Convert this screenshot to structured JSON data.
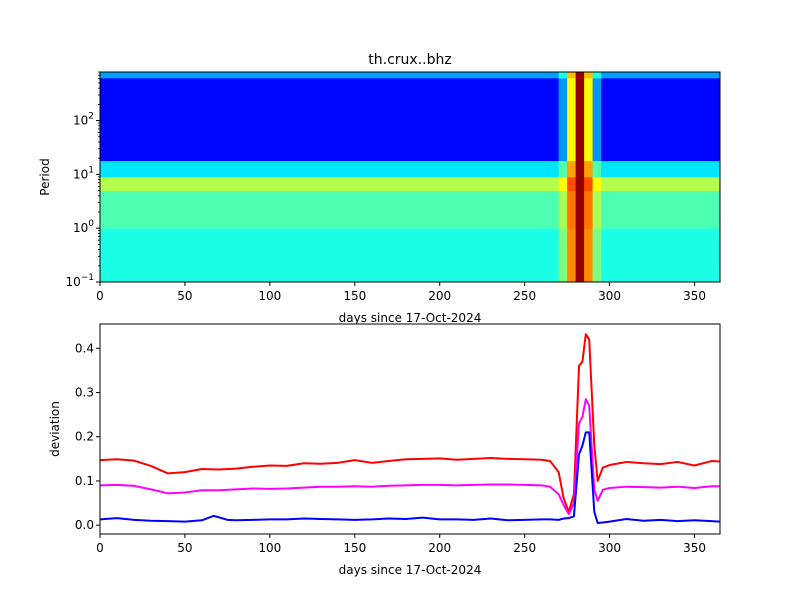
{
  "chart_data": [
    {
      "type": "heatmap",
      "title": "th.crux..bhz",
      "xlabel": "days since 17-Oct-2024",
      "ylabel": "Period",
      "xlim": [
        0,
        365
      ],
      "ylim": [
        0.1,
        800
      ],
      "yscale": "log",
      "colormap": "jet",
      "x_ticks": [
        "0",
        "50",
        "100",
        "150",
        "200",
        "250",
        "300",
        "350"
      ],
      "y_ticks": [
        {
          "base": "10",
          "exp": "−1"
        },
        {
          "base": "10",
          "exp": "0"
        },
        {
          "base": "10",
          "exp": "1"
        },
        {
          "base": "10",
          "exp": "2"
        }
      ],
      "period_bands": [
        {
          "period_range": [
            0.1,
            1.0
          ],
          "level": 0.4
        },
        {
          "period_range": [
            1.0,
            5.0
          ],
          "level": 0.45
        },
        {
          "period_range": [
            5.0,
            9.0
          ],
          "level": 0.55
        },
        {
          "period_range": [
            9.0,
            18.0
          ],
          "level": 0.35
        },
        {
          "period_range": [
            18.0,
            620.0
          ],
          "level": 0.13
        },
        {
          "period_range": [
            620.0,
            800.0
          ],
          "level": 0.28
        }
      ],
      "anomaly": {
        "day_range": [
          269,
          293
        ],
        "core_day_range": [
          278,
          287
        ],
        "level": 0.98
      }
    },
    {
      "type": "line",
      "title": "",
      "xlabel": "days since 17-Oct-2024",
      "ylabel": "deviation",
      "xlim": [
        0,
        365
      ],
      "ylim": [
        -0.02,
        0.455
      ],
      "x_ticks": [
        "0",
        "50",
        "100",
        "150",
        "200",
        "250",
        "300",
        "350"
      ],
      "y_ticks": [
        "0.0",
        "0.1",
        "0.2",
        "0.3",
        "0.4"
      ],
      "series": [
        {
          "color": "#ff0000",
          "x": [
            0,
            10,
            20,
            30,
            40,
            50,
            60,
            70,
            80,
            90,
            100,
            110,
            120,
            130,
            140,
            150,
            160,
            170,
            180,
            190,
            200,
            210,
            220,
            230,
            240,
            250,
            260,
            265,
            270,
            273,
            276,
            279,
            282,
            284,
            286,
            288,
            291,
            293,
            296,
            300,
            310,
            320,
            330,
            340,
            350,
            360,
            365
          ],
          "values": [
            0.147,
            0.149,
            0.146,
            0.134,
            0.117,
            0.12,
            0.127,
            0.126,
            0.128,
            0.132,
            0.135,
            0.134,
            0.14,
            0.139,
            0.141,
            0.147,
            0.141,
            0.145,
            0.149,
            0.15,
            0.151,
            0.148,
            0.15,
            0.152,
            0.15,
            0.149,
            0.148,
            0.145,
            0.12,
            0.06,
            0.03,
            0.07,
            0.36,
            0.37,
            0.432,
            0.42,
            0.18,
            0.1,
            0.13,
            0.136,
            0.143,
            0.14,
            0.138,
            0.143,
            0.135,
            0.145,
            0.144
          ]
        },
        {
          "color": "#ff00ff",
          "x": [
            0,
            10,
            20,
            30,
            40,
            50,
            60,
            70,
            80,
            90,
            100,
            110,
            120,
            130,
            140,
            150,
            160,
            170,
            180,
            190,
            200,
            210,
            220,
            230,
            240,
            250,
            260,
            265,
            270,
            273,
            276,
            279,
            282,
            284,
            286,
            288,
            291,
            293,
            296,
            300,
            310,
            320,
            330,
            340,
            350,
            360,
            365
          ],
          "values": [
            0.09,
            0.091,
            0.089,
            0.081,
            0.072,
            0.074,
            0.079,
            0.079,
            0.081,
            0.083,
            0.082,
            0.083,
            0.085,
            0.087,
            0.087,
            0.088,
            0.087,
            0.089,
            0.09,
            0.091,
            0.091,
            0.09,
            0.091,
            0.092,
            0.092,
            0.091,
            0.09,
            0.087,
            0.07,
            0.045,
            0.025,
            0.05,
            0.23,
            0.245,
            0.285,
            0.27,
            0.08,
            0.055,
            0.08,
            0.084,
            0.087,
            0.086,
            0.085,
            0.087,
            0.084,
            0.088,
            0.088
          ]
        },
        {
          "color": "#0000ff",
          "x": [
            0,
            10,
            20,
            30,
            40,
            50,
            60,
            67,
            75,
            80,
            90,
            100,
            110,
            120,
            130,
            140,
            150,
            160,
            170,
            180,
            190,
            200,
            210,
            220,
            230,
            240,
            250,
            260,
            265,
            270,
            273,
            276,
            279,
            282,
            284,
            286,
            288,
            291,
            293,
            296,
            300,
            310,
            320,
            330,
            340,
            350,
            360,
            365
          ],
          "values": [
            0.013,
            0.016,
            0.012,
            0.01,
            0.009,
            0.008,
            0.011,
            0.021,
            0.012,
            0.011,
            0.012,
            0.013,
            0.013,
            0.015,
            0.014,
            0.013,
            0.012,
            0.013,
            0.015,
            0.014,
            0.017,
            0.013,
            0.013,
            0.012,
            0.015,
            0.011,
            0.012,
            0.013,
            0.013,
            0.012,
            0.015,
            0.016,
            0.02,
            0.16,
            0.18,
            0.21,
            0.21,
            0.03,
            0.005,
            0.006,
            0.008,
            0.014,
            0.01,
            0.012,
            0.009,
            0.011,
            0.009,
            0.008
          ]
        }
      ]
    }
  ]
}
